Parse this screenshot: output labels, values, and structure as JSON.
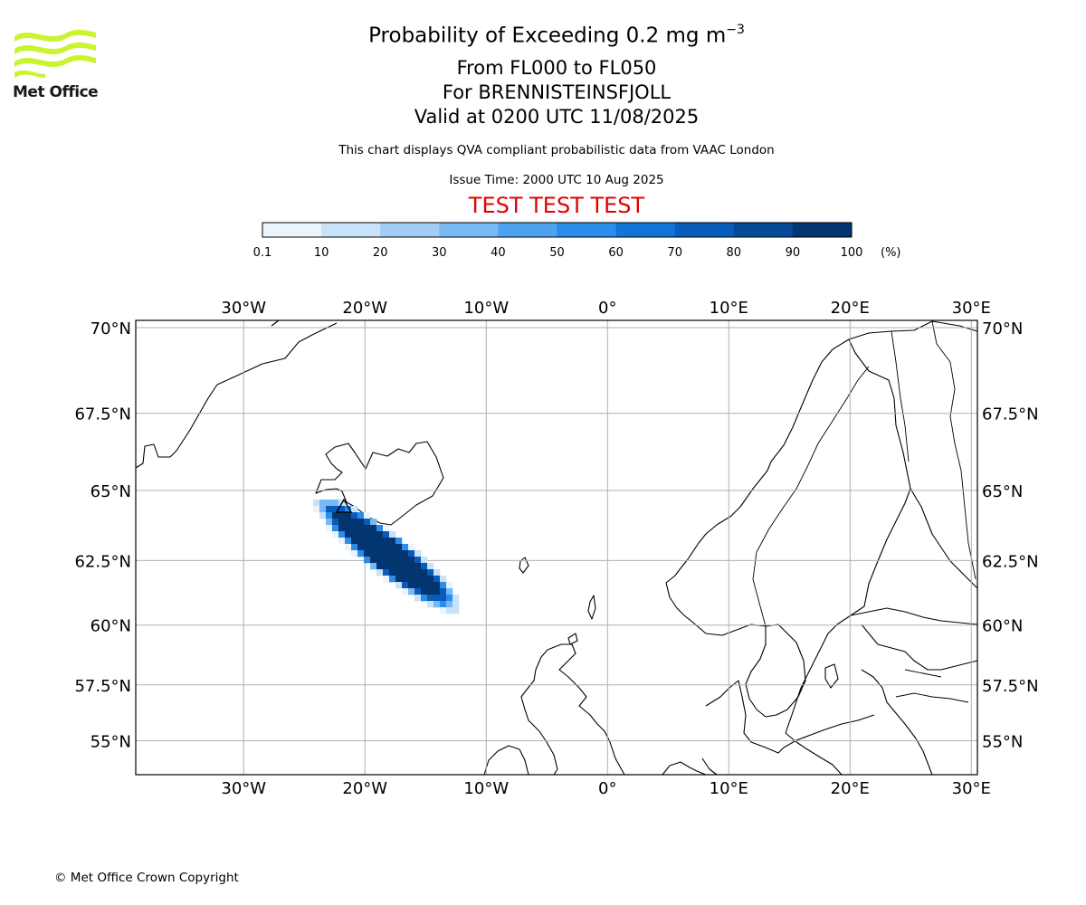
{
  "header": {
    "title_prefix": "Probability of Exceeding 0.2 mg m",
    "title_exponent": "−3",
    "subtitle_levels": "From FL000 to FL050",
    "subtitle_volcano": "For BRENNISTEINSFJOLL",
    "subtitle_valid": "Valid at 0200 UTC 11/08/2025",
    "description": "This chart displays QVA compliant probabilistic data from VAAC London",
    "issue_time": "Issue Time: 2000 UTC 10 Aug 2025",
    "test_banner": "TEST TEST TEST"
  },
  "logo": {
    "text": "Met Office",
    "color": "#c8f52e",
    "icon": "met-office-wave-logo"
  },
  "colorbar": {
    "ticks": [
      "0.1",
      "10",
      "20",
      "30",
      "40",
      "50",
      "60",
      "70",
      "80",
      "90",
      "100"
    ],
    "unit": "(%)",
    "colors": [
      "#eaf4fd",
      "#c8e2f9",
      "#a2cdf6",
      "#78b8f3",
      "#4ea2f0",
      "#2b8ceb",
      "#1374d8",
      "#0a5cbb",
      "#064996",
      "#033570"
    ]
  },
  "map": {
    "lon_ticks": [
      -30,
      -20,
      -10,
      0,
      10,
      20,
      30
    ],
    "lon_labels": [
      "30°W",
      "20°W",
      "10°W",
      "0°",
      "10°E",
      "20°E",
      "30°E"
    ],
    "lat_ticks": [
      70,
      67.5,
      65,
      62.5,
      60,
      57.5,
      55
    ],
    "lat_labels": [
      "70°N",
      "67.5°N",
      "65°N",
      "62.5°N",
      "60°N",
      "57.5°N",
      "55°N"
    ],
    "lon_range": [
      -38.9,
      30.5
    ],
    "lat_range": [
      53.4,
      70.2
    ],
    "plume_probability_percent": 100,
    "volcano_marker": "volcano-triangle-icon"
  },
  "footer": {
    "copyright": "© Met Office Crown Copyright"
  }
}
